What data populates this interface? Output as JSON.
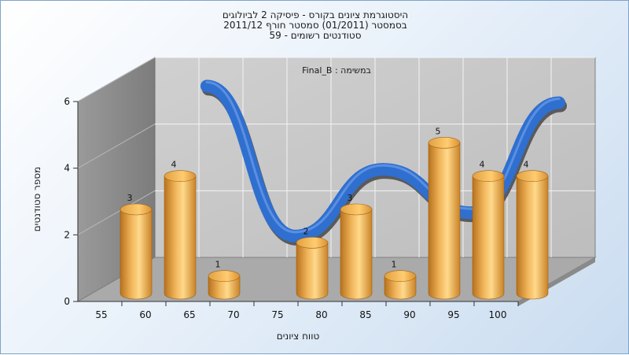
{
  "chart_data": {
    "type": "bar",
    "title_lines": [
      "היסטוגרמת ציונים בקורס - פיסיקה 2 לביולוגים",
      "בסמסטר  (01/2011)  סמסטר חורף 2011/12",
      "סטודנטים רשומים - 59"
    ],
    "subtitle": "Final_B : במשימה",
    "xlabel": "טווח ציונים",
    "ylabel": "מספר סטודנטים",
    "x_ticks": [
      "55",
      "60",
      "65",
      "70",
      "75",
      "80",
      "85",
      "90",
      "95",
      "100"
    ],
    "y_ticks": [
      "0",
      "2",
      "4",
      "6"
    ],
    "ylim": [
      0,
      6
    ],
    "bars": [
      {
        "x": 55,
        "value": 3,
        "label": "3"
      },
      {
        "x": 60,
        "value": 4,
        "label": "4"
      },
      {
        "x": 65,
        "value": 1,
        "label": "1"
      },
      {
        "x": 75,
        "value": 2,
        "label": "2"
      },
      {
        "x": 80,
        "value": 3,
        "label": "3"
      },
      {
        "x": 85,
        "value": 1,
        "label": "1"
      },
      {
        "x": 90,
        "value": 5,
        "label": "5"
      },
      {
        "x": 95,
        "value": 4,
        "label": "4"
      },
      {
        "x": 100,
        "value": 4,
        "label": "4"
      }
    ],
    "trend": {
      "x": [
        60,
        70,
        80,
        90,
        100
      ],
      "y": [
        5,
        0.5,
        2.5,
        1.2,
        4.5
      ]
    },
    "grid": true,
    "colors": {
      "bar_light": "#ffd98a",
      "bar_mid": "#e8a84a",
      "bar_dark": "#b8721c",
      "trend": "#2f6fd0",
      "trend_shadow": "#5a5a5a",
      "wall": "#c8c8c8",
      "side_wall": "#8c8c8c",
      "floor": "#a9a9a9"
    }
  }
}
